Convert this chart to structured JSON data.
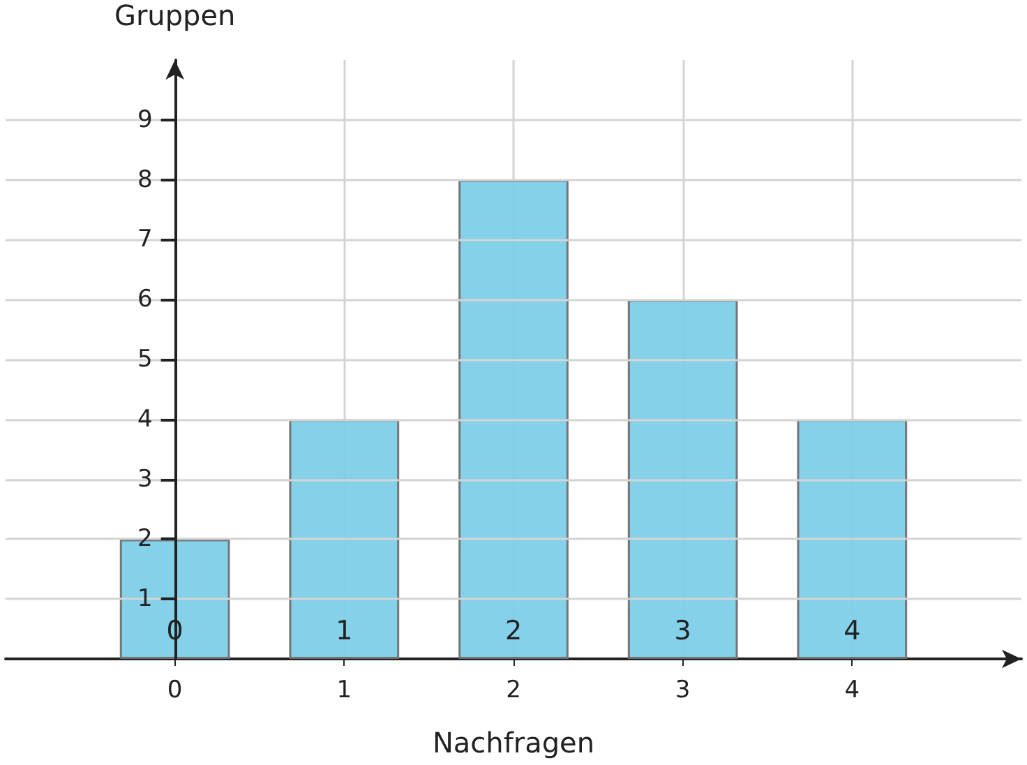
{
  "chart_data": {
    "type": "bar",
    "xlabel": "Nachfragen",
    "ylabel": "Gruppen",
    "x": [
      0,
      1,
      2,
      3,
      4
    ],
    "values": [
      2,
      4,
      8,
      6,
      4
    ],
    "color": "#7ecfe8",
    "xlim": [
      -1,
      5
    ],
    "xticks": [
      0,
      1,
      2,
      3,
      4
    ],
    "ylim": [
      0,
      10
    ],
    "yticks": [
      1,
      2,
      3,
      4,
      5,
      6,
      7,
      8,
      9
    ],
    "grid": true,
    "annotations": [
      {
        "text": "0",
        "x": 0,
        "y": 0
      },
      {
        "text": "1",
        "x": 1,
        "y": 0
      },
      {
        "text": "2",
        "x": 2,
        "y": 0
      },
      {
        "text": "3",
        "x": 3,
        "y": 0
      },
      {
        "text": "4",
        "x": 4,
        "y": 0
      }
    ]
  }
}
